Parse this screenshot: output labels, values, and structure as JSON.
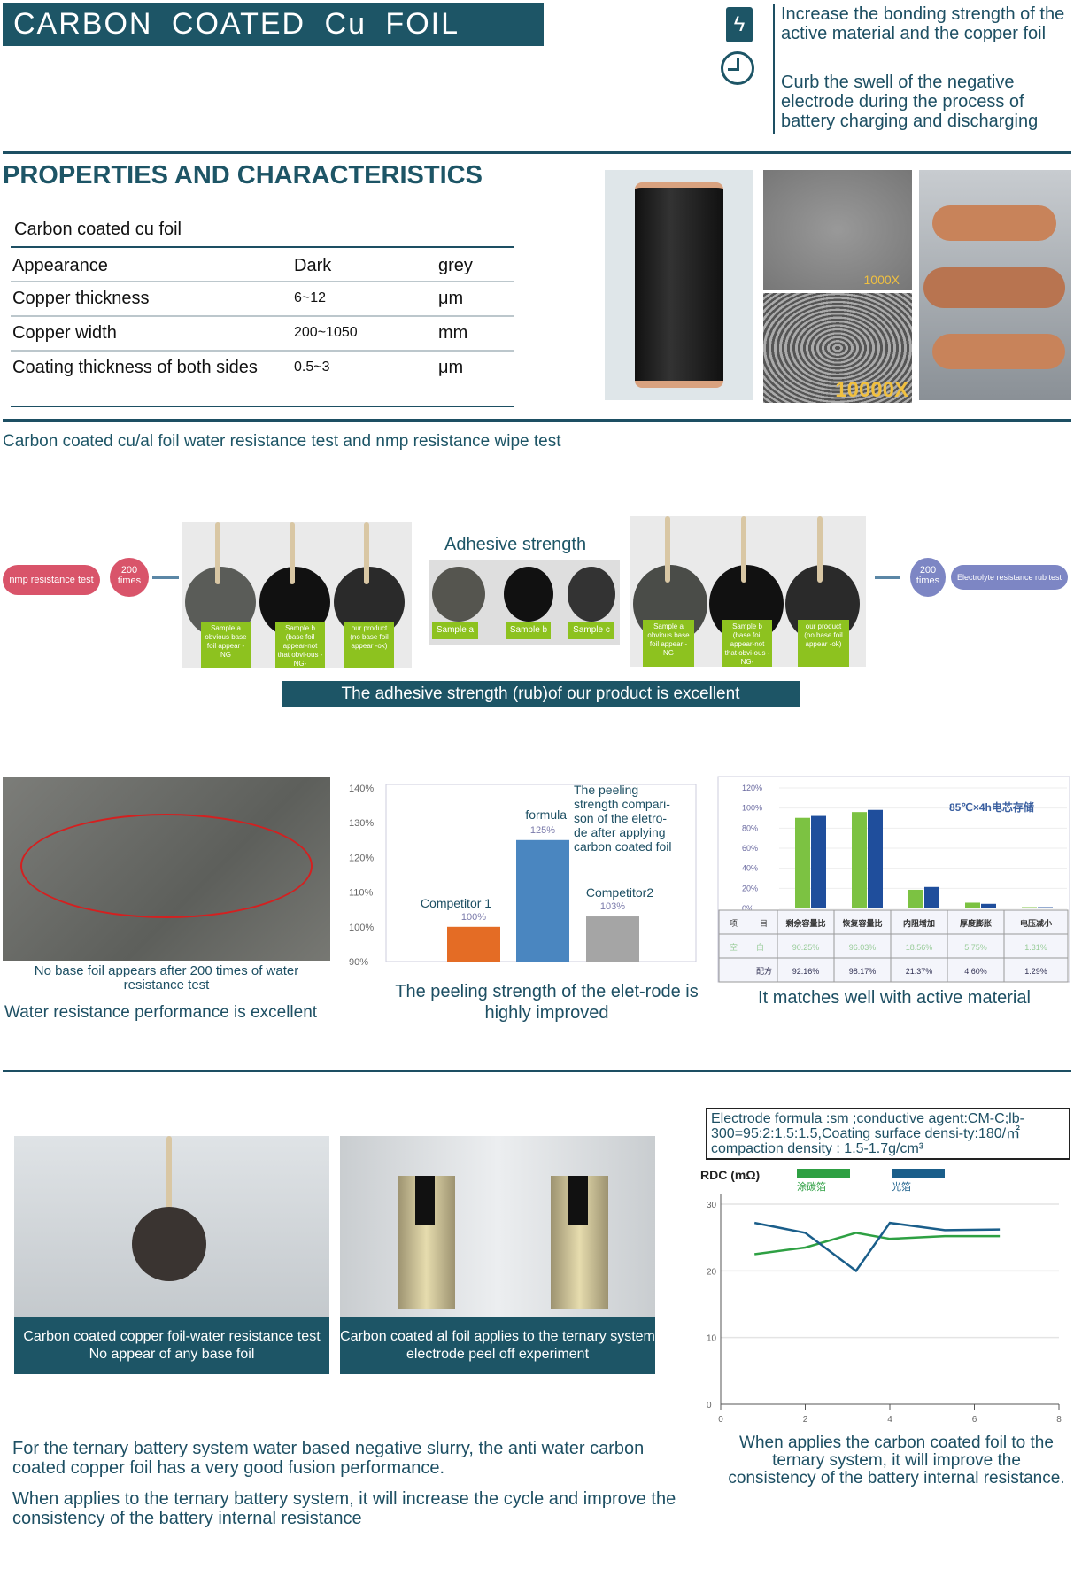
{
  "header": {
    "title": "CARBON  COATED  Cu  FOIL",
    "features": [
      {
        "icon": "battery-bolt-icon",
        "text": "Increase the bonding strength of the active material and the copper foil"
      },
      {
        "icon": "clock-icon",
        "text": "Curb the swell of the negative electrode during the process of battery charging and discharging"
      }
    ]
  },
  "properties": {
    "heading": "PROPERTIES AND CHARACTERISTICS",
    "caption": "Carbon coated cu foil",
    "rows": [
      [
        "Appearance",
        "Dark",
        "grey"
      ],
      [
        "Copper thickness",
        "6~12",
        "μm"
      ],
      [
        "Copper width",
        "200~1050",
        "mm"
      ],
      [
        "Coating thickness of both sides",
        "0.5~3",
        "μm"
      ]
    ],
    "photo_labels": [
      "1000X",
      "10000X"
    ]
  },
  "test_section": {
    "heading": "Carbon coated cu/al foil water resistance test and nmp resistance wipe test",
    "nmp_label": "nmp resistance test",
    "times_label": "200 times",
    "electrolyte_label": "Electrolyte resistance rub test",
    "adhesive_title": "Adhesive strength",
    "left_labels": [
      "Sample a obvious base foil appear -NG",
      "Sample b (base foil appear-not that obvi-ous -NG-",
      "our product (no base foil appear -ok)"
    ],
    "mid_labels": [
      "Sample a",
      "Sample b",
      "Sample c"
    ],
    "right_labels": [
      "Sample a obvious base foil appear -NG",
      "Sample b (base foil appear-not that obvi-ous -NG-",
      "our product (no base foil appear -ok)"
    ],
    "banner": "The adhesive strength (rub)of our product is excellent"
  },
  "water": {
    "caption": "No base foil appears after 200 times of water resistance test",
    "headline": "Water resistance performance is excellent"
  },
  "chart_data": [
    {
      "type": "bar",
      "categories": [
        "Competitor 1",
        "formula",
        "Competitor2"
      ],
      "values": [
        100,
        125,
        103
      ],
      "data_labels": [
        "100%",
        "125%",
        "103%"
      ],
      "colors": [
        "#e46c25",
        "#4a86c0",
        "#a5a5a5"
      ],
      "ylim": [
        90,
        140
      ],
      "ticks": [
        "90%",
        "100%",
        "110%",
        "120%",
        "130%",
        "140%"
      ],
      "annotation": "The peeling strength compari-son of the eletro-de after applying carbon coated foil",
      "grid": true
    },
    {
      "type": "bar",
      "title": "85℃×4h电芯存储",
      "categories": [
        "剩余容量比",
        "恢复容量比",
        "内阻增加",
        "厚度膨胀",
        "电压减小"
      ],
      "series": [
        {
          "values": [
            90.25,
            96.03,
            18.56,
            5.75,
            1.31
          ],
          "color": "#7cc242"
        },
        {
          "values": [
            92.16,
            98.17,
            21.37,
            4.6,
            1.29
          ],
          "color": "#1f4e9c"
        }
      ],
      "ylim": [
        0,
        120
      ],
      "ticks": [
        "0%",
        "20%",
        "40%",
        "60%",
        "80%",
        "100%",
        "120%"
      ],
      "table": {
        "header": [
          "项",
          "目"
        ],
        "row_labels": [
          [
            "空",
            "白"
          ],
          [
            "",
            "配方"
          ]
        ],
        "rows": [
          [
            "90.25%",
            "96.03%",
            "18.56%",
            "5.75%",
            "1.31%"
          ],
          [
            "92.16%",
            "98.17%",
            "21.37%",
            "4.60%",
            "1.29%"
          ]
        ]
      }
    },
    {
      "type": "line",
      "ylabel": "RDC (mΩ)",
      "xlim": [
        0,
        8
      ],
      "ylim": [
        0,
        30
      ],
      "xticks": [
        "0",
        "2",
        "4",
        "6",
        "8"
      ],
      "yticks": [
        "0",
        "10",
        "20",
        "30"
      ],
      "grid": true,
      "legend": "top",
      "series": [
        {
          "name": "涂碳箔",
          "color": "#2ea043",
          "x": [
            0.8,
            2,
            3.2,
            4,
            5.3,
            6.6
          ],
          "y": [
            22.5,
            23.5,
            25.7,
            24.8,
            25.2,
            25.2
          ]
        },
        {
          "name": "光箔",
          "color": "#1a5e8a",
          "x": [
            0.8,
            2,
            3.2,
            4,
            5.3,
            6.6
          ],
          "y": [
            27.2,
            25.7,
            20,
            27.2,
            26.1,
            26.2
          ]
        }
      ]
    }
  ],
  "peel": {
    "caption": "The peeling strength of the elet-rode is highly improved"
  },
  "match": {
    "caption": "It matches well with active material"
  },
  "bottom": {
    "photo_captions": [
      "Carbon coated copper foil-water resistance test No appear of any base foil",
      "Carbon coated al foil applies to the ternary system electrode peel off experiment"
    ],
    "formula": "Electrode formula :sm ;conductive agent:CM-C;lb-300=95:2:1.5:1.5,Coating surface densi-ty:180/㎡ compaction density : 1.5-1.7g/cm³",
    "chart_caption": "When applies the carbon coated foil to the ternary system, it will improve the consistency of the battery internal resistance.",
    "para1": "For the ternary battery system water based negative slurry, the anti water carbon coated copper foil has a very good fusion performance.",
    "para2": "When applies to the ternary battery system, it will increase the cycle and improve the consistency of the battery internal resistance"
  }
}
